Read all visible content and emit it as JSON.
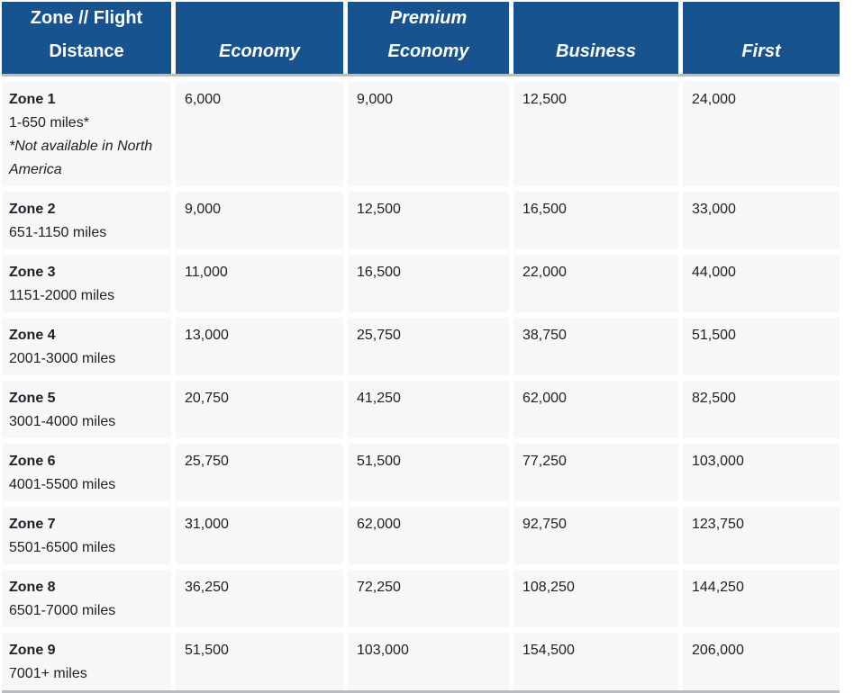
{
  "colors": {
    "header_bg": "#17538F",
    "header_text": "#FFFFFF",
    "row_bg": "#F7F7FA",
    "divider": "#B9BCC1",
    "body_text": "#202124"
  },
  "table": {
    "columns": [
      {
        "id": "zone_distance",
        "lines": [
          "Zone // Flight",
          "Distance"
        ]
      },
      {
        "id": "economy",
        "lines": [
          "Economy"
        ]
      },
      {
        "id": "premium_economy",
        "lines": [
          "Premium",
          "Economy"
        ]
      },
      {
        "id": "business",
        "lines": [
          "Business"
        ]
      },
      {
        "id": "first",
        "lines": [
          "First"
        ]
      }
    ],
    "rows": [
      {
        "zone": "Zone 1",
        "distance": "1-650 miles*",
        "note": "*Not available in North America",
        "economy": "6,000",
        "premium_economy": "9,000",
        "business": "12,500",
        "first": "24,000"
      },
      {
        "zone": "Zone 2",
        "distance": "651-1150 miles",
        "economy": "9,000",
        "premium_economy": "12,500",
        "business": "16,500",
        "first": "33,000"
      },
      {
        "zone": "Zone 3",
        "distance": "1151-2000 miles",
        "economy": "11,000",
        "premium_economy": "16,500",
        "business": "22,000",
        "first": "44,000"
      },
      {
        "zone": "Zone 4",
        "distance": "2001-3000 miles",
        "economy": "13,000",
        "premium_economy": "25,750",
        "business": "38,750",
        "first": "51,500"
      },
      {
        "zone": "Zone 5",
        "distance": "3001-4000 miles",
        "economy": "20,750",
        "premium_economy": "41,250",
        "business": "62,000",
        "first": "82,500"
      },
      {
        "zone": "Zone 6",
        "distance": "4001-5500 miles",
        "economy": "25,750",
        "premium_economy": "51,500",
        "business": "77,250",
        "first": "103,000"
      },
      {
        "zone": "Zone 7",
        "distance": "5501-6500 miles",
        "economy": "31,000",
        "premium_economy": "62,000",
        "business": "92,750",
        "first": "123,750"
      },
      {
        "zone": "Zone 8",
        "distance": "6501-7000 miles",
        "economy": "36,250",
        "premium_economy": "72,250",
        "business": "108,250",
        "first": "144,250"
      },
      {
        "zone": "Zone 9",
        "distance": "7001+ miles",
        "economy": "51,500",
        "premium_economy": "103,000",
        "business": "154,500",
        "first": "206,000"
      }
    ]
  },
  "chart_data": {
    "type": "table",
    "title": "Award miles by zone // flight distance and cabin",
    "columns": [
      "Zone // Flight Distance",
      "Economy",
      "Premium Economy",
      "Business",
      "First"
    ],
    "rows": [
      {
        "zone": "Zone 1",
        "flight_distance": "1-650 miles (*Not available in North America)",
        "economy": 6000,
        "premium_economy": 9000,
        "business": 12500,
        "first": 24000
      },
      {
        "zone": "Zone 2",
        "flight_distance": "651-1150 miles",
        "economy": 9000,
        "premium_economy": 12500,
        "business": 16500,
        "first": 33000
      },
      {
        "zone": "Zone 3",
        "flight_distance": "1151-2000 miles",
        "economy": 11000,
        "premium_economy": 16500,
        "business": 22000,
        "first": 44000
      },
      {
        "zone": "Zone 4",
        "flight_distance": "2001-3000 miles",
        "economy": 13000,
        "premium_economy": 25750,
        "business": 38750,
        "first": 51500
      },
      {
        "zone": "Zone 5",
        "flight_distance": "3001-4000 miles",
        "economy": 20750,
        "premium_economy": 41250,
        "business": 62000,
        "first": 82500
      },
      {
        "zone": "Zone 6",
        "flight_distance": "4001-5500 miles",
        "economy": 25750,
        "premium_economy": 51500,
        "business": 77250,
        "first": 103000
      },
      {
        "zone": "Zone 7",
        "flight_distance": "5501-6500 miles",
        "economy": 31000,
        "premium_economy": 62000,
        "business": 92750,
        "first": 123750
      },
      {
        "zone": "Zone 8",
        "flight_distance": "6501-7000 miles",
        "economy": 36250,
        "premium_economy": 72250,
        "business": 108250,
        "first": 144250
      },
      {
        "zone": "Zone 9",
        "flight_distance": "7001+ miles",
        "economy": 51500,
        "premium_economy": 103000,
        "business": 154500,
        "first": 206000
      }
    ]
  }
}
